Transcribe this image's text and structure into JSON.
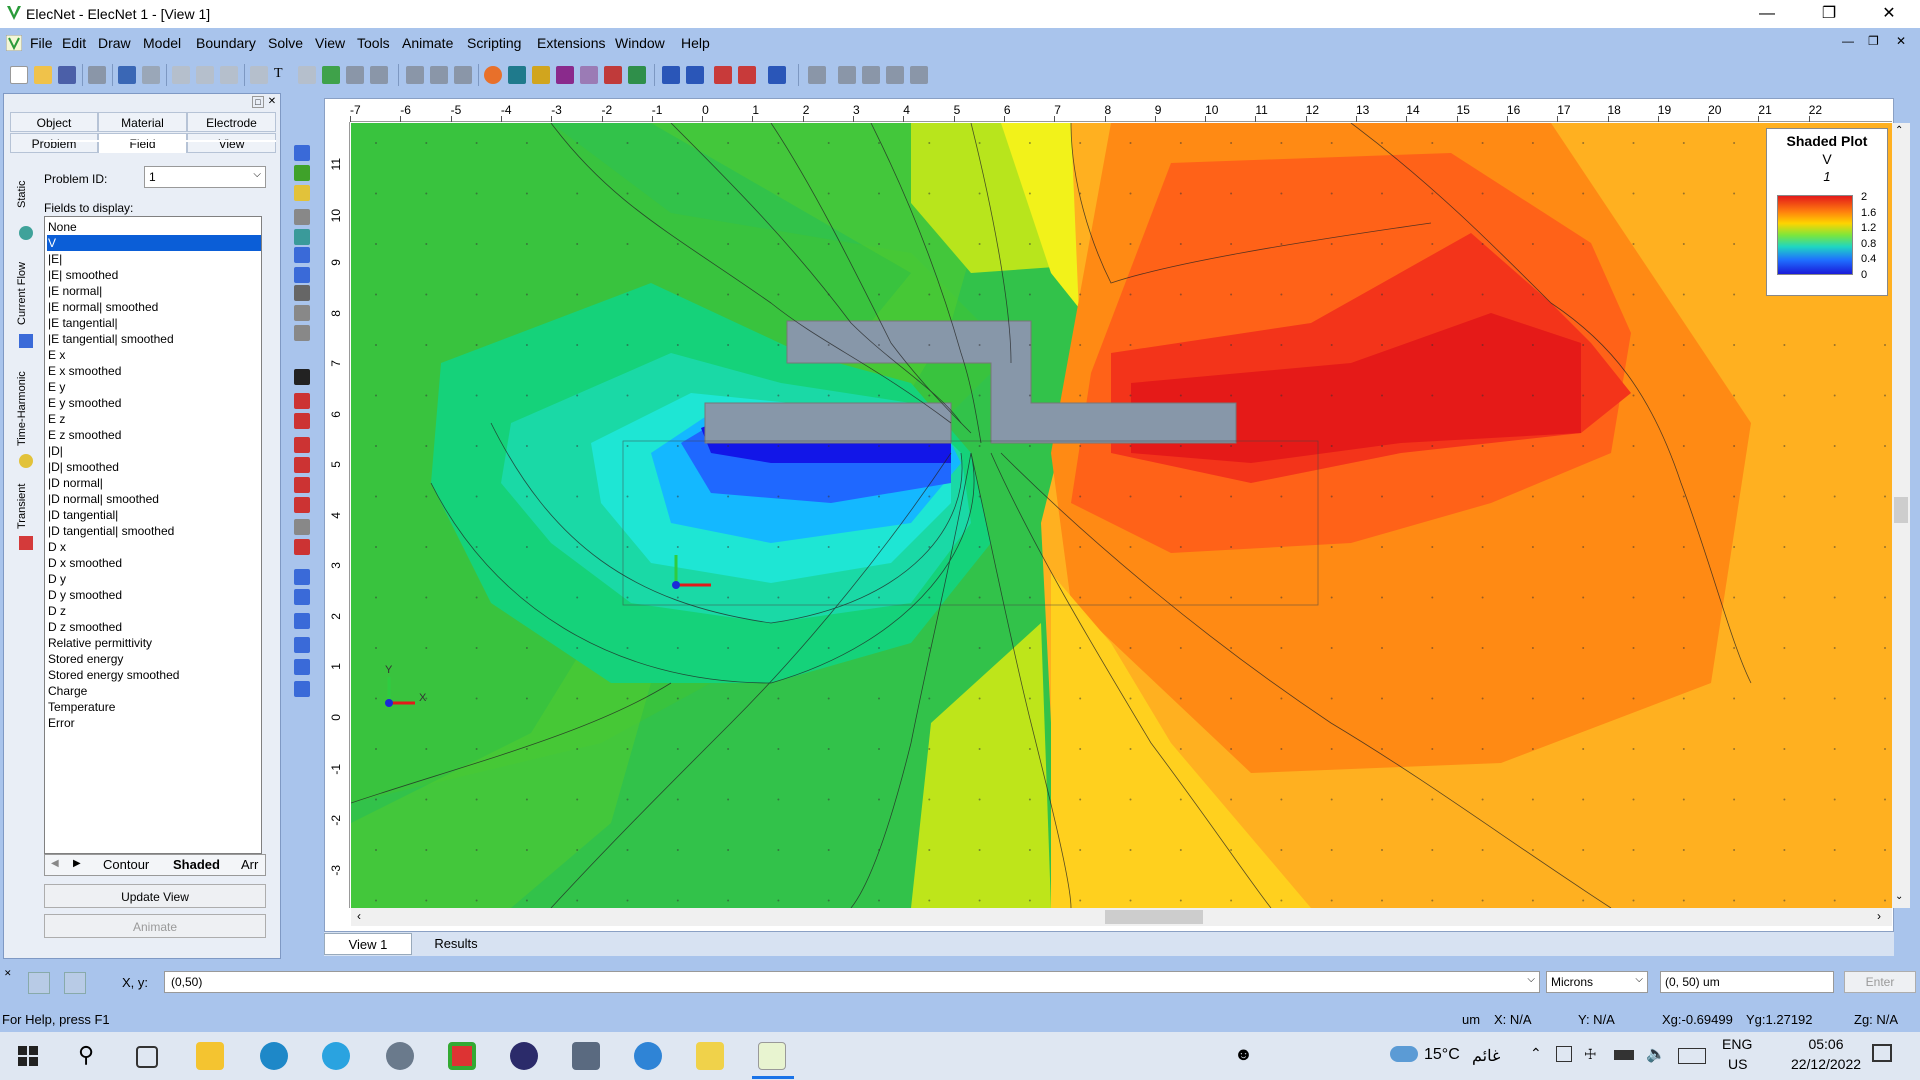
{
  "window": {
    "title": "ElecNet - ElecNet 1 - [View 1]",
    "min_glyph": "—",
    "max_glyph": "❐",
    "close_glyph": "✕"
  },
  "menu": [
    "File",
    "Edit",
    "Draw",
    "Model",
    "Boundary",
    "Solve",
    "View",
    "Tools",
    "Animate",
    "Scripting",
    "Extensions",
    "Window",
    "Help"
  ],
  "left_panel": {
    "tabs_row1": [
      "Object",
      "Material",
      "Electrode"
    ],
    "tabs_row2": [
      "Problem",
      "Field",
      "View"
    ],
    "vertical_tabs": [
      "Static",
      "Current Flow",
      "Time-Harmonic",
      "Transient"
    ],
    "problem_id_label": "Problem ID:",
    "problem_id_value": "1",
    "fields_label": "Fields to display:",
    "fields": [
      "None",
      "V",
      "|E|",
      "|E| smoothed",
      "|E normal|",
      "|E normal| smoothed",
      "|E tangential|",
      "|E tangential| smoothed",
      "E x",
      "E x smoothed",
      "E y",
      "E y smoothed",
      "E z",
      "E z smoothed",
      "|D|",
      "|D| smoothed",
      "|D normal|",
      "|D normal| smoothed",
      "|D tangential|",
      "|D tangential| smoothed",
      "D x",
      "D x smoothed",
      "D y",
      "D y smoothed",
      "D z",
      "D z smoothed",
      "Relative permittivity",
      "Stored energy",
      "Stored energy smoothed",
      "Charge",
      "Temperature",
      "Error"
    ],
    "selected_field": "V",
    "bottom_tabs": [
      "Contour",
      "Shaded",
      "Arr"
    ],
    "update_button": "Update View",
    "animate_button": "Animate"
  },
  "rulers": {
    "x_ticks": [
      "-7",
      "-6",
      "-5",
      "-4",
      "-3",
      "-2",
      "-1",
      "0",
      "1",
      "2",
      "3",
      "4",
      "5",
      "6",
      "7",
      "8",
      "9",
      "10",
      "11",
      "12",
      "13",
      "14",
      "15",
      "16",
      "17",
      "18",
      "19",
      "20",
      "21",
      "22"
    ],
    "y_ticks": [
      "11",
      "10",
      "9",
      "8",
      "7",
      "6",
      "5",
      "4",
      "3",
      "2",
      "1",
      "0",
      "-1",
      "-2",
      "-3"
    ],
    "corner_y": "y",
    "corner_x": "x"
  },
  "legend": {
    "title": "Shaded Plot",
    "quantity": "V",
    "problem": "1",
    "levels": [
      "2",
      "1.6",
      "1.2",
      "0.8",
      "0.4",
      "0"
    ]
  },
  "axis_labels": {
    "x": "X",
    "y": "Y"
  },
  "view_tabs": [
    "View 1",
    "Results"
  ],
  "command_bar": {
    "xy_label": "X, y:",
    "input_value": "(0,50)",
    "units": "Microns",
    "result_value": "(0, 50) um",
    "enter_button": "Enter"
  },
  "status": {
    "help": "For Help, press F1",
    "units": "um",
    "x": "X: N/A",
    "y": "Y: N/A",
    "xg": "Xg:-0.69499",
    "yg": "Yg:1.27192",
    "zg": "Zg: N/A"
  },
  "taskbar": {
    "weather": "15°C",
    "weather_text": "غائم",
    "lang1": "ENG",
    "lang2": "US",
    "time": "05:06",
    "date": "22/12/2022"
  },
  "colors": {
    "accent_blue": "#0b5ed7",
    "background": "#a9c4ec",
    "conductor": "#8797a9"
  }
}
